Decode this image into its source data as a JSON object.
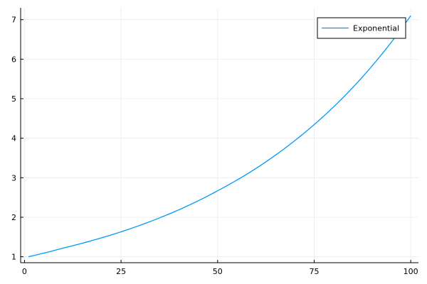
{
  "chart_data": {
    "type": "line",
    "title": "",
    "xlabel": "",
    "ylabel": "",
    "xlim": [
      -1,
      102
    ],
    "ylim": [
      0.85,
      7.3
    ],
    "xticks": [
      0,
      25,
      50,
      75,
      100
    ],
    "yticks": [
      1,
      2,
      3,
      4,
      5,
      6,
      7
    ],
    "grid": true,
    "legend_position": "top-right",
    "colors": {
      "series": "#009AFA",
      "grid": "#EBEBEB",
      "axis": "#000000"
    },
    "series": [
      {
        "name": "Exponential",
        "x": [
          1,
          10,
          20,
          30,
          40,
          50,
          60,
          70,
          80,
          90,
          100
        ],
        "y": [
          1.0,
          1.22,
          1.48,
          1.8,
          2.19,
          2.67,
          3.24,
          3.94,
          4.79,
          5.83,
          7.1
        ]
      }
    ]
  }
}
